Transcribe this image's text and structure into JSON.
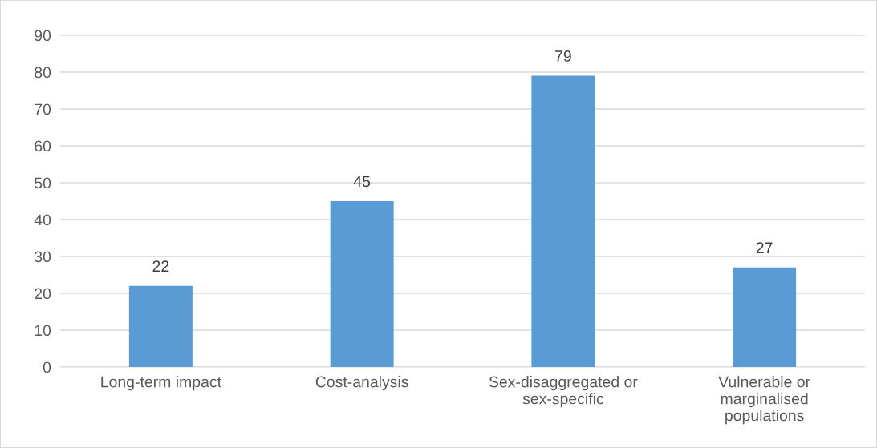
{
  "chart_data": {
    "type": "bar",
    "categories": [
      "Long-term impact",
      "Cost-analysis",
      "Sex-disaggregated or\nsex-specific",
      "Vulnerable or\nmarginalised\npopulations"
    ],
    "values": [
      22,
      45,
      79,
      27
    ],
    "color": "#5b9bd5",
    "ylim": [
      0,
      90
    ],
    "yticks": [
      0,
      10,
      20,
      30,
      40,
      50,
      60,
      70,
      80,
      90
    ],
    "grid": "y",
    "data_labels": true
  }
}
